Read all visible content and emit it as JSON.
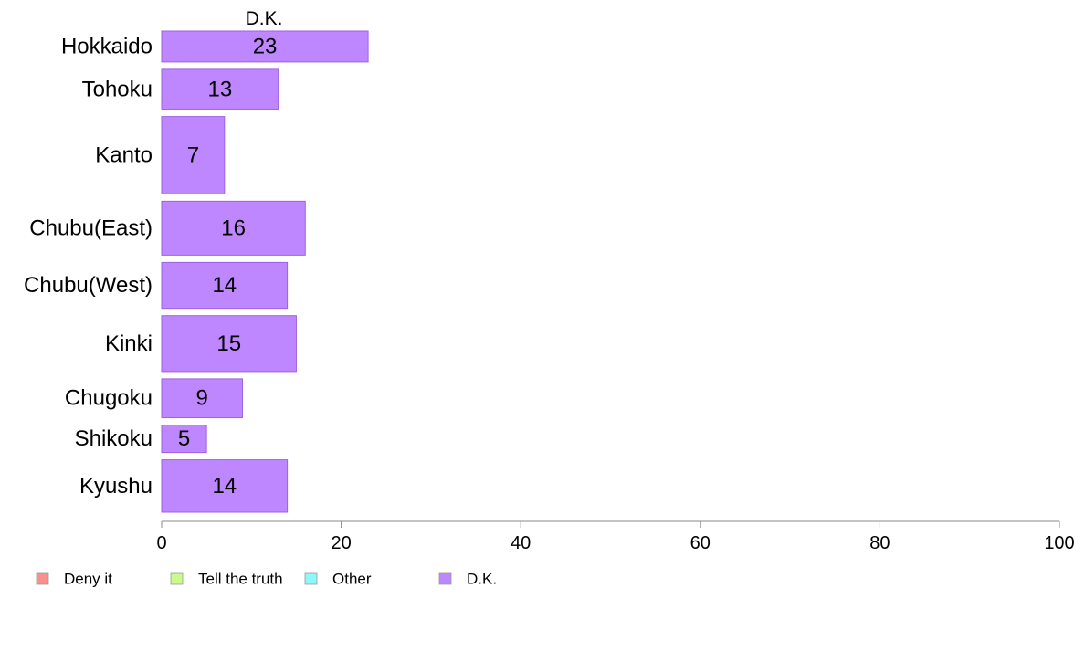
{
  "chart_data": {
    "type": "bar",
    "orientation": "horizontal",
    "title": "D.K.",
    "categories": [
      "Hokkaido",
      "Tohoku",
      "Kanto",
      "Chubu(East)",
      "Chubu(West)",
      "Kinki",
      "Chugoku",
      "Shikoku",
      "Kyushu"
    ],
    "bar_thickness_relative": [
      0.62,
      0.8,
      1.55,
      1.08,
      0.92,
      1.12,
      0.78,
      0.55,
      1.05
    ],
    "series": [
      {
        "name": "D.K.",
        "color": "#bf87ff",
        "values": [
          23,
          13,
          7,
          16,
          14,
          15,
          9,
          5,
          14
        ]
      }
    ],
    "xlim": [
      0,
      100
    ],
    "xticks": [
      0,
      20,
      40,
      60,
      80,
      100
    ],
    "xlabel": "",
    "ylabel": "",
    "grid": false,
    "legend": {
      "position": "bottom-left",
      "entries": [
        {
          "label": "Deny it",
          "color": "#f8918c"
        },
        {
          "label": "Tell the truth",
          "color": "#c8fb8c"
        },
        {
          "label": "Other",
          "color": "#8cf8f8"
        },
        {
          "label": "D.K.",
          "color": "#bf87ff"
        }
      ]
    }
  }
}
